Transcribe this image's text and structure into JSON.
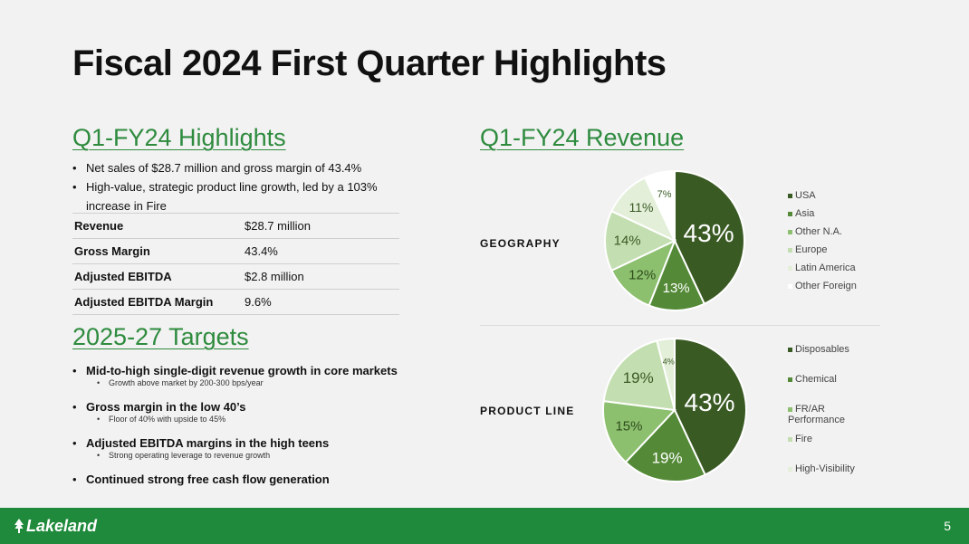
{
  "title": "Fiscal 2024 First Quarter Highlights",
  "highlights": {
    "heading": "Q1-FY24 Highlights",
    "bullets": [
      "Net sales of $28.7 million and gross margin of 43.4%",
      "High-value, strategic product line growth, led by a 103% increase in Fire"
    ],
    "table": [
      {
        "label": "Revenue",
        "value": "$28.7 million"
      },
      {
        "label": "Gross Margin",
        "value": "43.4%"
      },
      {
        "label": "Adjusted EBITDA",
        "value": "$2.8 million"
      },
      {
        "label": "Adjusted EBITDA Margin",
        "value": "9.6%"
      }
    ]
  },
  "targets": {
    "heading": "2025-27 Targets",
    "items": [
      {
        "text": "Mid-to-high single-digit revenue growth in core markets",
        "sub": "Growth above market by 200-300 bps/year"
      },
      {
        "text": "Gross margin in the low 40’s",
        "sub": "Floor of 40% with upside to 45%"
      },
      {
        "text": "Adjusted EBITDA margins in the high teens",
        "sub": "Strong operating leverage to revenue growth"
      },
      {
        "text": "Continued strong free cash flow generation",
        "sub": ""
      }
    ]
  },
  "revenue_heading": "Q1-FY24 Revenue",
  "chart_data": [
    {
      "type": "pie",
      "label": "GEOGRAPHY",
      "categories": [
        "USA",
        "Asia",
        "Other N.A.",
        "Europe",
        "Latin America",
        "Other Foreign"
      ],
      "values": [
        43,
        13,
        12,
        14,
        11,
        7
      ],
      "labels": [
        "43%",
        "13%",
        "12%",
        "14%",
        "11%",
        "7%"
      ],
      "colors": [
        "#3a5a24",
        "#548a37",
        "#8cbf6e",
        "#c3deb0",
        "#e3efd9",
        "#ffffff"
      ],
      "legend": "right"
    },
    {
      "type": "pie",
      "label": "PRODUCT LINE",
      "categories": [
        "Disposables",
        "Chemical",
        "FR/AR Performance",
        "Fire",
        "High-Visibility"
      ],
      "values": [
        43,
        19,
        15,
        19,
        4
      ],
      "labels": [
        "43%",
        "19%",
        "15%",
        "19%",
        "4%"
      ],
      "colors": [
        "#3a5a24",
        "#548a37",
        "#8cbf6e",
        "#c3deb0",
        "#e3efd9"
      ],
      "legend": "right"
    }
  ],
  "footer": {
    "logo": "Lakeland",
    "page": "5"
  }
}
